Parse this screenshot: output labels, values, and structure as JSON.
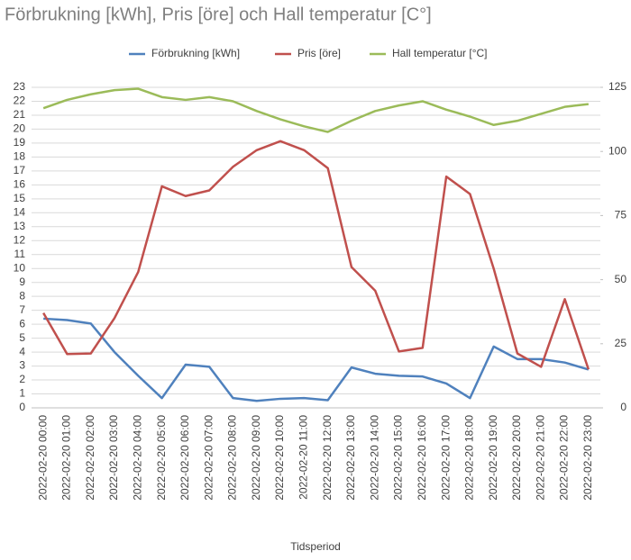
{
  "chart_data": {
    "type": "line",
    "title": "Förbrukning [kWh], Pris [öre] och Hall temperatur [C°]",
    "x_label": "Tidsperiod",
    "categories": [
      "2022-02-20 00:00",
      "2022-02-20 01:00",
      "2022-02-20 02:00",
      "2022-02-20 03:00",
      "2022-02-20 04:00",
      "2022-02-20 05:00",
      "2022-02-20 06:00",
      "2022-02-20 07:00",
      "2022-02-20 08:00",
      "2022-02-20 09:00",
      "2022-02-20 10:00",
      "2022-02-20 11:00",
      "2022-02-20 12:00",
      "2022-02-20 13:00",
      "2022-02-20 14:00",
      "2022-02-20 15:00",
      "2022-02-20 16:00",
      "2022-02-20 17:00",
      "2022-02-20 18:00",
      "2022-02-20 19:00",
      "2022-02-20 20:00",
      "2022-02-20 21:00",
      "2022-02-20 22:00",
      "2022-02-20 23:00"
    ],
    "series": [
      {
        "name": "Förbrukning [kWh]",
        "color": "#4f81bd",
        "values": [
          6.4,
          6.3,
          6.05,
          4.0,
          2.3,
          0.7,
          3.1,
          2.95,
          0.7,
          0.5,
          0.65,
          0.7,
          0.55,
          2.9,
          2.45,
          2.3,
          2.25,
          1.75,
          0.7,
          4.4,
          3.5,
          3.5,
          3.25,
          2.75
        ]
      },
      {
        "name": "Pris [öre]",
        "color": "#c0504d",
        "axis": "y2",
        "values": [
          37,
          21,
          21.2,
          35,
          53,
          86.4,
          82.6,
          84.8,
          94,
          100.5,
          104,
          100.5,
          93.5,
          54.9,
          45.7,
          22,
          23.4,
          90.2,
          83.4,
          54.3,
          21.2,
          16,
          42.4,
          15
        ]
      },
      {
        "name": "Hall temperatur [°C]",
        "color": "#9bbb59",
        "values": [
          21.5,
          22.1,
          22.5,
          22.8,
          22.9,
          22.3,
          22.1,
          22.3,
          22.0,
          21.3,
          20.7,
          20.2,
          19.8,
          20.6,
          21.3,
          21.7,
          22.0,
          21.4,
          20.9,
          20.3,
          20.6,
          21.1,
          21.6,
          21.8
        ]
      }
    ],
    "ylim": [
      0,
      23
    ],
    "yticks": [
      0,
      1,
      2,
      3,
      4,
      5,
      6,
      7,
      8,
      9,
      10,
      11,
      12,
      13,
      14,
      15,
      16,
      17,
      18,
      19,
      20,
      21,
      22,
      23
    ],
    "y2lim": [
      0,
      125
    ],
    "y2ticks": [
      0,
      25,
      50,
      75,
      100,
      125
    ],
    "grid": true,
    "legend": "top"
  }
}
